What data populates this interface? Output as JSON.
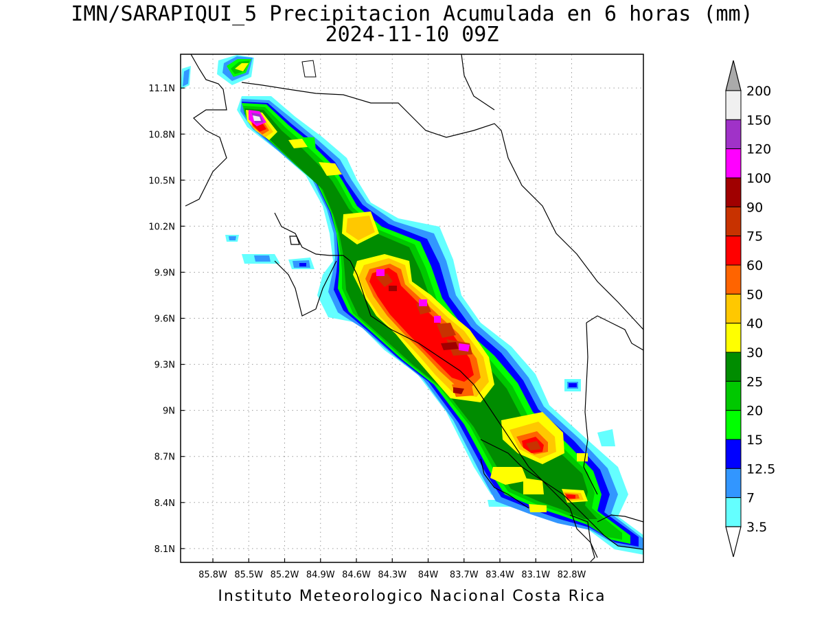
{
  "title": {
    "line1": "IMN/SARAPIQUI_5 Precipitacion Acumulada en 6 horas (mm)",
    "line2": "2024-11-10 09Z"
  },
  "footer": "Instituto Meteorologico Nacional Costa Rica",
  "map": {
    "lon_range": [
      -86.07,
      -82.2
    ],
    "lat_range": [
      8.01,
      11.32
    ],
    "x_ticks": [
      "85.8W",
      "85.5W",
      "85.2W",
      "84.9W",
      "84.6W",
      "84.3W",
      "84W",
      "83.7W",
      "83.4W",
      "83.1W",
      "82.8W"
    ],
    "y_ticks": [
      "11.1N",
      "10.8N",
      "10.5N",
      "10.2N",
      "9.9N",
      "9.6N",
      "9.3N",
      "9N",
      "8.7N",
      "8.4N",
      "8.1N"
    ],
    "grid": "dotted"
  },
  "colorbar": {
    "levels": [
      "200",
      "150",
      "120",
      "100",
      "90",
      "75",
      "60",
      "50",
      "40",
      "30",
      "25",
      "20",
      "15",
      "12.5",
      "7",
      "3.5"
    ],
    "colors": [
      "#f0f0f0",
      "#a032c8",
      "#ff00ff",
      "#a00000",
      "#c83200",
      "#ff0000",
      "#ff6400",
      "#ffc800",
      "#ffff00",
      "#008c00",
      "#00c800",
      "#00ff00",
      "#0000ff",
      "#3296ff",
      "#64ffff"
    ],
    "overflow_color": "#aaaaaa",
    "underflow_color": "#ffffff"
  }
}
